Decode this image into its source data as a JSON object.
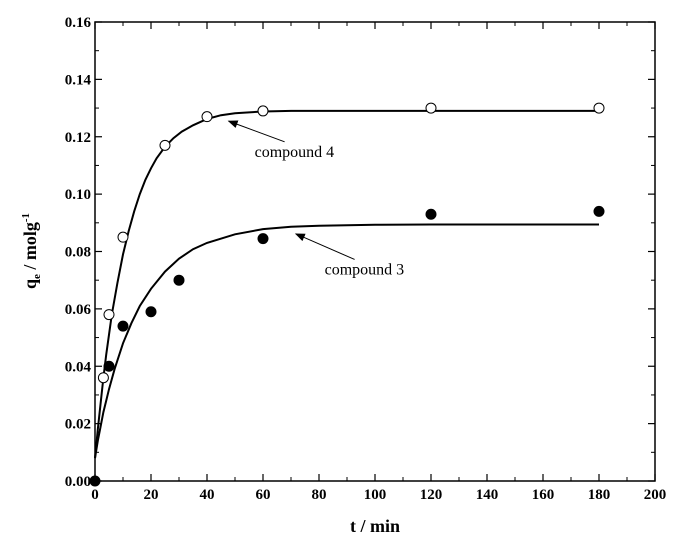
{
  "chart_data": {
    "type": "scatter",
    "title": "",
    "xlabel": "t / min",
    "ylabel_main": "q",
    "ylabel_sub": "e",
    "ylabel_rest": " / molg",
    "ylabel_sup": "-1",
    "xlim": [
      0,
      200
    ],
    "ylim": [
      0,
      0.16
    ],
    "xticks": [
      0,
      20,
      40,
      60,
      80,
      100,
      120,
      140,
      160,
      180,
      200
    ],
    "xtick_labels": [
      "0",
      "20",
      "40",
      "60",
      "80",
      "100",
      "120",
      "140",
      "160",
      "180",
      "200"
    ],
    "yticks": [
      0,
      0.02,
      0.04,
      0.06,
      0.08,
      0.1,
      0.12,
      0.14,
      0.16
    ],
    "ytick_labels": [
      "0.00",
      "0.02",
      "0.04",
      "0.06",
      "0.08",
      "0.10",
      "0.12",
      "0.14",
      "0.16"
    ],
    "grid": false,
    "series": [
      {
        "name": "compound 4",
        "marker": "open-circle",
        "x": [
          3,
          5,
          10,
          25,
          40,
          60,
          120,
          180
        ],
        "y": [
          0.036,
          0.058,
          0.085,
          0.117,
          0.127,
          0.129,
          0.13,
          0.13
        ],
        "fit_x": [
          0,
          1,
          2,
          3,
          4,
          5,
          6,
          8,
          10,
          12,
          14,
          16,
          18,
          20,
          22,
          25,
          28,
          31,
          35,
          40,
          45,
          50,
          60,
          70,
          80,
          100,
          120,
          140,
          160,
          180
        ],
        "fit_y": [
          0.008,
          0.018,
          0.027,
          0.036,
          0.044,
          0.051,
          0.058,
          0.069,
          0.079,
          0.087,
          0.094,
          0.1,
          0.105,
          0.109,
          0.1125,
          0.1165,
          0.1195,
          0.1218,
          0.124,
          0.1262,
          0.1275,
          0.1282,
          0.1288,
          0.129,
          0.129,
          0.129,
          0.129,
          0.129,
          0.129,
          0.129
        ]
      },
      {
        "name": "compound 3",
        "marker": "filled-circle",
        "x": [
          0,
          5,
          10,
          20,
          30,
          60,
          120,
          180
        ],
        "y": [
          0,
          0.04,
          0.054,
          0.059,
          0.07,
          0.0845,
          0.093,
          0.094
        ],
        "fit_x": [
          0,
          1,
          2,
          3,
          4,
          5,
          7,
          10,
          13,
          16,
          20,
          25,
          30,
          35,
          40,
          50,
          60,
          70,
          80,
          100,
          120,
          140,
          160,
          180
        ],
        "fit_y": [
          0.008,
          0.014,
          0.019,
          0.024,
          0.028,
          0.032,
          0.039,
          0.048,
          0.055,
          0.061,
          0.067,
          0.073,
          0.0775,
          0.0808,
          0.083,
          0.086,
          0.0878,
          0.0886,
          0.089,
          0.0893,
          0.0894,
          0.0894,
          0.0894,
          0.0894
        ]
      }
    ],
    "annotations": [
      {
        "text": "compound 4",
        "arrow_to": [
          47,
          0.1265
        ],
        "text_at": [
          57,
          0.113
        ]
      },
      {
        "text": "compound 3",
        "arrow_to": [
          71,
          0.0872
        ],
        "text_at": [
          82,
          0.072
        ]
      }
    ]
  }
}
